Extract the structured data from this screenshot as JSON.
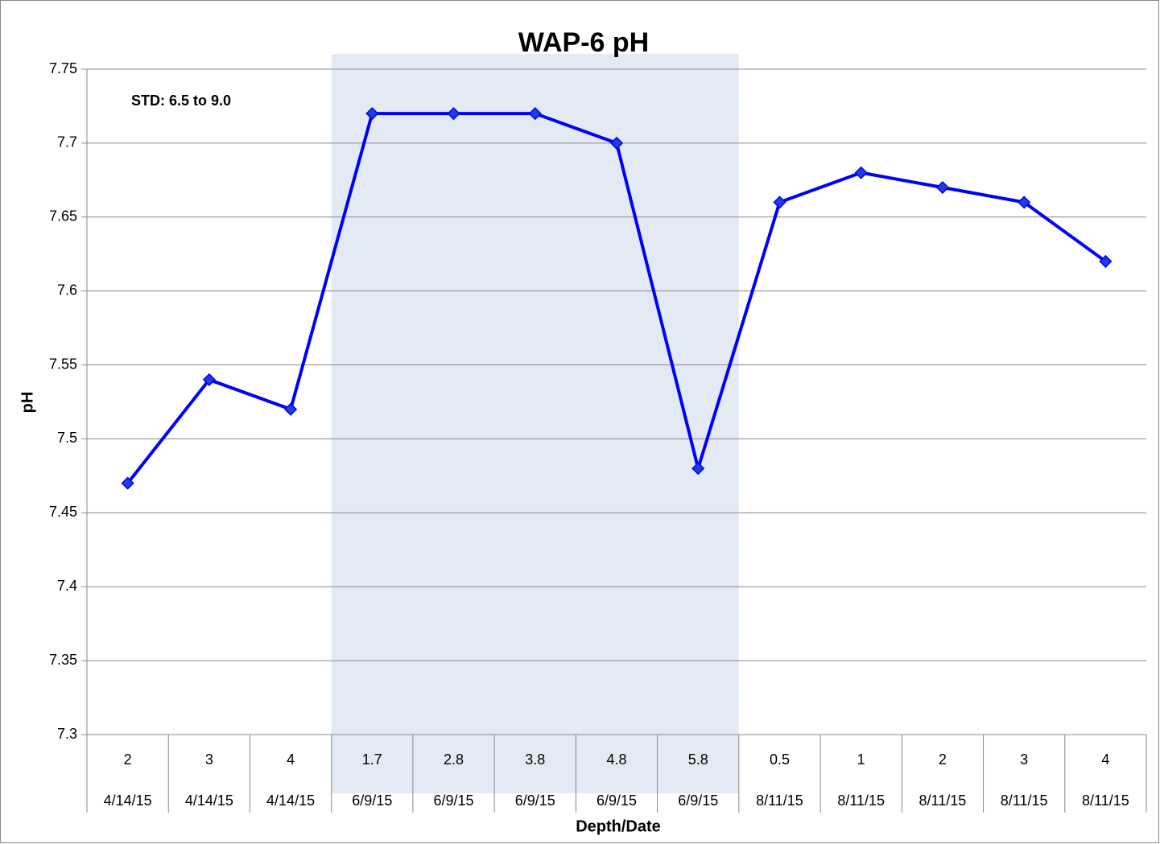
{
  "chart_data": {
    "type": "line",
    "title": "WAP-6 pH",
    "annotation": "STD: 6.5 to 9.0",
    "x_label": "Depth/Date",
    "y_label": "pH",
    "categories": [
      "2",
      "3",
      "4",
      "1.7",
      "2.8",
      "3.8",
      "4.8",
      "5.8",
      "0.5",
      "1",
      "2",
      "3",
      "4"
    ],
    "dates": [
      "4/14/15",
      "4/14/15",
      "4/14/15",
      "6/9/15",
      "6/9/15",
      "6/9/15",
      "6/9/15",
      "6/9/15",
      "8/11/15",
      "8/11/15",
      "8/11/15",
      "8/11/15",
      "8/11/15"
    ],
    "series": [
      {
        "name": "pH",
        "color": "#0000ff",
        "marker_color": "#1f3fd8",
        "values": [
          7.47,
          7.54,
          7.52,
          7.72,
          7.72,
          7.72,
          7.7,
          7.48,
          7.66,
          7.68,
          7.67,
          7.66,
          7.62
        ]
      }
    ],
    "ylim": [
      7.3,
      7.75
    ],
    "yticks": [
      7.3,
      7.35,
      7.4,
      7.45,
      7.5,
      7.55,
      7.6,
      7.65,
      7.7,
      7.75
    ],
    "grid": true,
    "highlight": {
      "from": 3,
      "to": 7,
      "color": "#e4eaf4"
    }
  }
}
